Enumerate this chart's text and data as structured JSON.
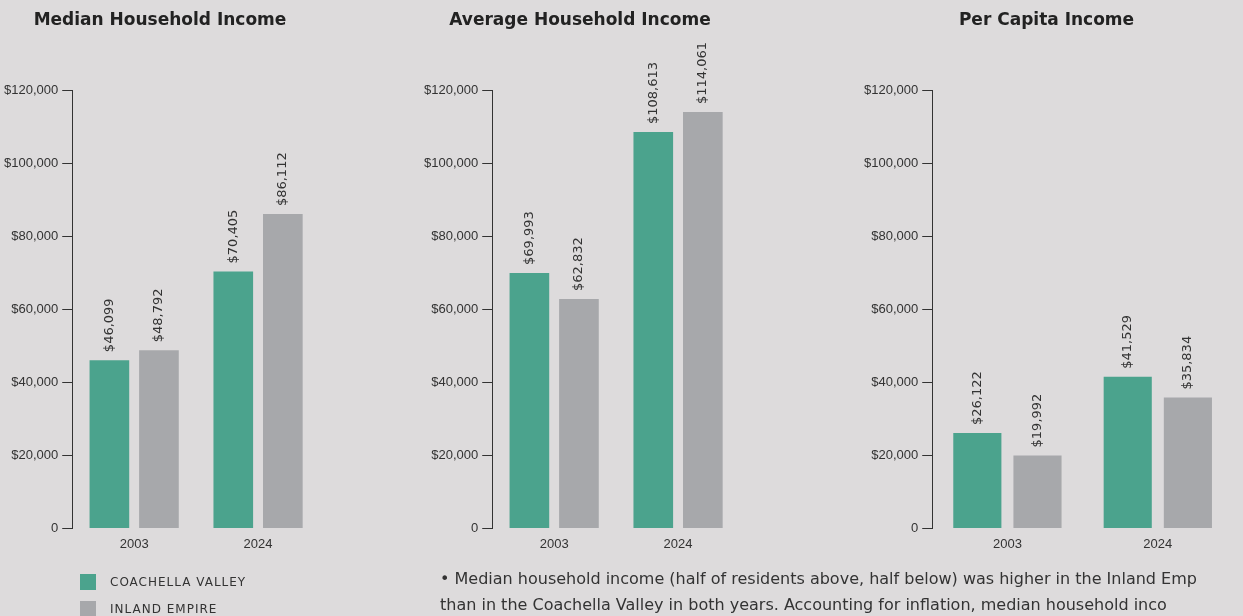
{
  "chart_data": [
    {
      "type": "bar",
      "title": "Median Household Income",
      "categories": [
        "2003",
        "2024"
      ],
      "series": [
        {
          "name": "COACHELLA VALLEY",
          "color": "#4ba38d",
          "values": [
            46099,
            70405
          ],
          "value_labels": [
            "$46,099",
            "$70,405"
          ]
        },
        {
          "name": "INLAND EMPIRE",
          "color": "#a7a8ab",
          "values": [
            48792,
            86112
          ],
          "value_labels": [
            "$48,792",
            "$86,112"
          ]
        }
      ],
      "ylim": [
        0,
        120000
      ],
      "yticks": [
        {
          "value": 0,
          "label": "0"
        },
        {
          "value": 20000,
          "label": "$20,000"
        },
        {
          "value": 40000,
          "label": "$40,000"
        },
        {
          "value": 60000,
          "label": "$60,000"
        },
        {
          "value": 80000,
          "label": "$80,000"
        },
        {
          "value": 100000,
          "label": "$100,000"
        },
        {
          "value": 120000,
          "label": "$120,000"
        }
      ],
      "grid": false,
      "legend": "bottom left"
    },
    {
      "type": "bar",
      "title": "Average Household Income",
      "categories": [
        "2003",
        "2024"
      ],
      "series": [
        {
          "color": "#4ba38d",
          "values": [
            69993,
            108613
          ],
          "value_labels": [
            "$69,993",
            "$108,613"
          ]
        },
        {
          "color": "#a7a8ab",
          "values": [
            62832,
            114061
          ],
          "value_labels": [
            "$62,832",
            "$114,061"
          ]
        }
      ],
      "ylim": [
        0,
        120000
      ],
      "yticks": [
        {
          "value": 0,
          "label": "0"
        },
        {
          "value": 20000,
          "label": "$20,000"
        },
        {
          "value": 40000,
          "label": "$40,000"
        },
        {
          "value": 60000,
          "label": "$60,000"
        },
        {
          "value": 80000,
          "label": "$80,000"
        },
        {
          "value": 100000,
          "label": "$100,000"
        },
        {
          "value": 120000,
          "label": "$120,000"
        }
      ],
      "grid": false,
      "annotations": [
        "• Median household income (half of residents above, half below) was higher in the Inland Emp than in the Coachella Valley in both years. Accounting for inflation, median household inco"
      ]
    },
    {
      "type": "bar",
      "title": "Per Capita Income",
      "categories": [
        "2003",
        "2024"
      ],
      "series": [
        {
          "color": "#4ba38d",
          "values": [
            26122,
            41529
          ],
          "value_labels": [
            "$26,122",
            "$41,529"
          ]
        },
        {
          "color": "#a7a8ab",
          "values": [
            19992,
            35834
          ],
          "value_labels": [
            "$19,992",
            "$35,834"
          ]
        }
      ],
      "ylim": [
        0,
        120000
      ],
      "yticks": [
        {
          "value": 0,
          "label": "0"
        },
        {
          "value": 20000,
          "label": "$20,000"
        },
        {
          "value": 40000,
          "label": "$40,000"
        },
        {
          "value": 60000,
          "label": "$60,000"
        },
        {
          "value": 80000,
          "label": "$80,000"
        },
        {
          "value": 100000,
          "label": "$100,000"
        },
        {
          "value": 120000,
          "label": "$120,000"
        }
      ],
      "grid": false
    }
  ]
}
